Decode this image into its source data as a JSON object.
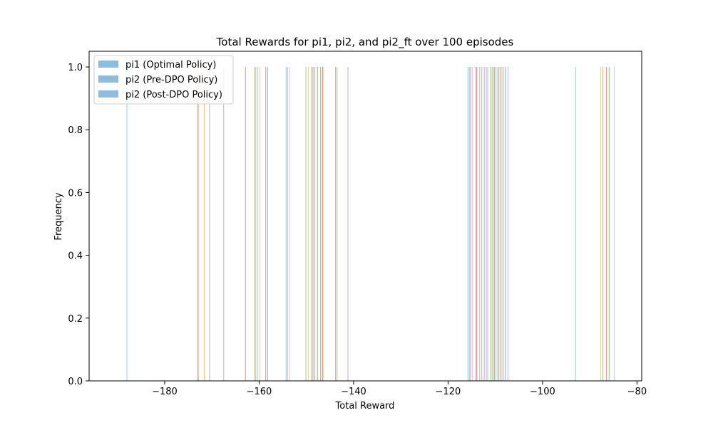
{
  "chart_data": {
    "type": "bar",
    "title": "Total Rewards for pi1, pi2, and pi2_ft over 100 episodes",
    "xlabel": "Total Reward",
    "ylabel": "Frequency",
    "xlim": [
      -196,
      -79
    ],
    "ylim": [
      0,
      1.05
    ],
    "xticks": [
      -180,
      -160,
      -140,
      -120,
      -100,
      -80
    ],
    "xtick_labels": [
      "−180",
      "−160",
      "−140",
      "−120",
      "−100",
      "−80"
    ],
    "yticks": [
      0.0,
      0.2,
      0.4,
      0.6,
      0.8,
      1.0
    ],
    "ytick_labels": [
      "0.0",
      "0.2",
      "0.4",
      "0.6",
      "0.8",
      "1.0"
    ],
    "grid": false,
    "legend": {
      "placement": "top-left",
      "swatch_color": "#8fbbdc",
      "entries": [
        "pi1 (Optimal Policy)",
        "pi2 (Pre-DPO Policy)",
        "pi2 (Post-DPO Policy)"
      ]
    },
    "series": [
      {
        "name": "pi1 (Optimal Policy)",
        "bar_height": 1.0,
        "values": [
          -188.0,
          -172.9,
          -171.6,
          -170.5,
          -162.9,
          -159.9,
          -154.0,
          -149.6,
          -148.9,
          -148.2,
          -147.6,
          -146.6,
          -143.5,
          -141.2,
          -115.2,
          -114.8,
          -113.3,
          -112.6,
          -111.0,
          -110.5,
          -109.9,
          -109.0,
          -108.6,
          -107.3,
          -87.2,
          -84.8
        ]
      },
      {
        "name": "pi2 (Pre-DPO Policy)",
        "bar_height": 1.0,
        "values": [
          -167.5,
          -161.0,
          -160.4,
          -158.2,
          -154.3,
          -148.6,
          -146.5,
          -115.5,
          -114.1,
          -112.3,
          -111.6,
          -110.7,
          -109.3,
          -107.9,
          -93.0,
          -86.5
        ]
      },
      {
        "name": "pi2 (Post-DPO Policy)",
        "bar_height": 1.0,
        "values": [
          -173.0,
          -160.8,
          -158.6,
          -153.6,
          -150.1,
          -147.7,
          -147.0,
          -143.8,
          -115.8,
          -113.9,
          -112.9,
          -111.9,
          -110.2,
          -109.6,
          -108.3,
          -87.7,
          -85.9
        ]
      }
    ],
    "colors": [
      "#17becf",
      "#d62728",
      "#ff7f0e",
      "#9467bd",
      "#8c564b",
      "#e377c2",
      "#7f7f7f",
      "#bcbd22",
      "#2ca02c",
      "#1f77b4"
    ]
  }
}
